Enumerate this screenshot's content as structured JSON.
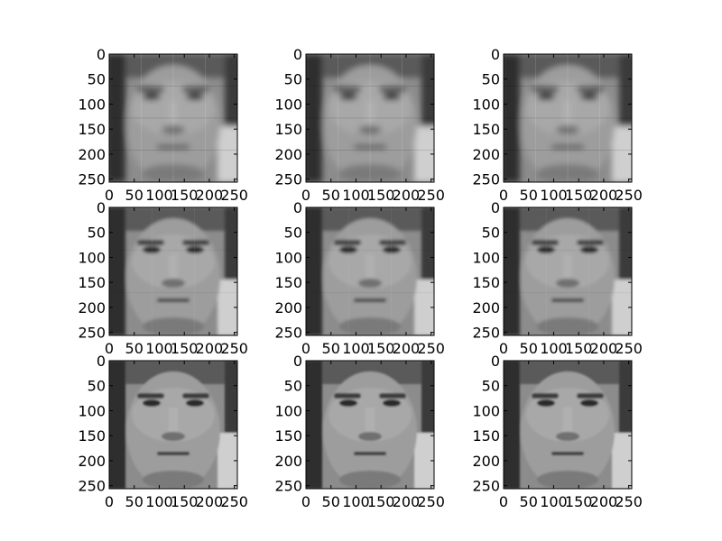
{
  "figure": {
    "background": "#ffffff",
    "grid": false,
    "legend": "none"
  },
  "chart_data": {
    "type": "image_grid",
    "rows": 3,
    "cols": 3,
    "image": {
      "colormap": "gray",
      "subject": "grayscale face reconstruction",
      "extent": [
        0,
        256,
        256,
        0
      ]
    },
    "panels": [
      {
        "row": 1,
        "col": 1,
        "variant": "coarse patches"
      },
      {
        "row": 1,
        "col": 2,
        "variant": "coarse patches"
      },
      {
        "row": 1,
        "col": 3,
        "variant": "coarse patches"
      },
      {
        "row": 2,
        "col": 1,
        "variant": "medium detail"
      },
      {
        "row": 2,
        "col": 2,
        "variant": "medium detail"
      },
      {
        "row": 2,
        "col": 3,
        "variant": "medium detail"
      },
      {
        "row": 3,
        "col": 1,
        "variant": "fine detail"
      },
      {
        "row": 3,
        "col": 2,
        "variant": "fine detail"
      },
      {
        "row": 3,
        "col": 3,
        "variant": "fine detail"
      }
    ],
    "x_ticks": [
      0,
      50,
      100,
      150,
      200,
      250
    ],
    "x_tick_labels": [
      "0",
      "50",
      "100",
      "150",
      "200",
      "250"
    ],
    "y_ticks": [
      0,
      50,
      100,
      150,
      200,
      250
    ],
    "y_tick_labels": [
      "0",
      "50",
      "100",
      "150",
      "200",
      "250"
    ],
    "xlim": [
      0,
      256
    ],
    "ylim": [
      256,
      0
    ],
    "title": "",
    "xlabel": "",
    "ylabel": ""
  }
}
